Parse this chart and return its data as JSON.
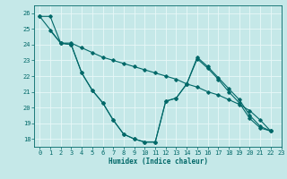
{
  "xlabel": "Humidex (Indice chaleur)",
  "xlim": [
    -0.5,
    23
  ],
  "ylim": [
    17.5,
    26.5
  ],
  "yticks": [
    18,
    19,
    20,
    21,
    22,
    23,
    24,
    25,
    26
  ],
  "xticks": [
    0,
    1,
    2,
    3,
    4,
    5,
    6,
    7,
    8,
    9,
    10,
    11,
    12,
    13,
    14,
    15,
    16,
    17,
    18,
    19,
    20,
    21,
    22,
    23
  ],
  "bg_color": "#c5e8e8",
  "grid_color": "#e8f8f8",
  "line_color": "#006868",
  "series": [
    {
      "x": [
        0,
        1,
        2,
        3,
        4,
        5,
        6,
        7,
        8,
        9,
        10,
        11,
        12,
        13,
        14,
        15,
        16,
        17,
        18,
        19,
        20,
        21,
        22
      ],
      "y": [
        25.8,
        25.8,
        24.1,
        24.1,
        23.8,
        23.5,
        23.2,
        23.0,
        22.8,
        22.6,
        22.4,
        22.2,
        22.0,
        21.8,
        21.5,
        21.3,
        21.0,
        20.8,
        20.5,
        20.2,
        19.8,
        19.2,
        18.5
      ]
    },
    {
      "x": [
        1,
        2,
        3,
        4,
        5,
        6,
        7,
        8,
        9,
        10,
        11,
        12,
        13,
        14,
        15,
        16,
        17,
        18,
        19,
        20,
        21,
        22
      ],
      "y": [
        24.9,
        24.1,
        24.0,
        22.2,
        21.1,
        20.3,
        19.2,
        18.3,
        18.0,
        17.8,
        17.8,
        20.4,
        20.6,
        21.5,
        23.2,
        22.6,
        21.9,
        21.2,
        20.5,
        19.5,
        18.8,
        18.5
      ]
    },
    {
      "x": [
        0,
        2,
        3,
        4,
        5,
        6,
        7,
        8,
        9,
        10,
        11,
        12,
        13,
        14,
        15,
        16,
        17,
        18,
        19,
        20,
        21,
        22
      ],
      "y": [
        25.8,
        24.1,
        24.0,
        22.2,
        21.1,
        20.3,
        19.2,
        18.3,
        18.0,
        17.8,
        17.8,
        20.4,
        20.6,
        21.5,
        23.1,
        22.5,
        21.8,
        21.0,
        20.3,
        19.3,
        18.7,
        18.5
      ]
    }
  ]
}
